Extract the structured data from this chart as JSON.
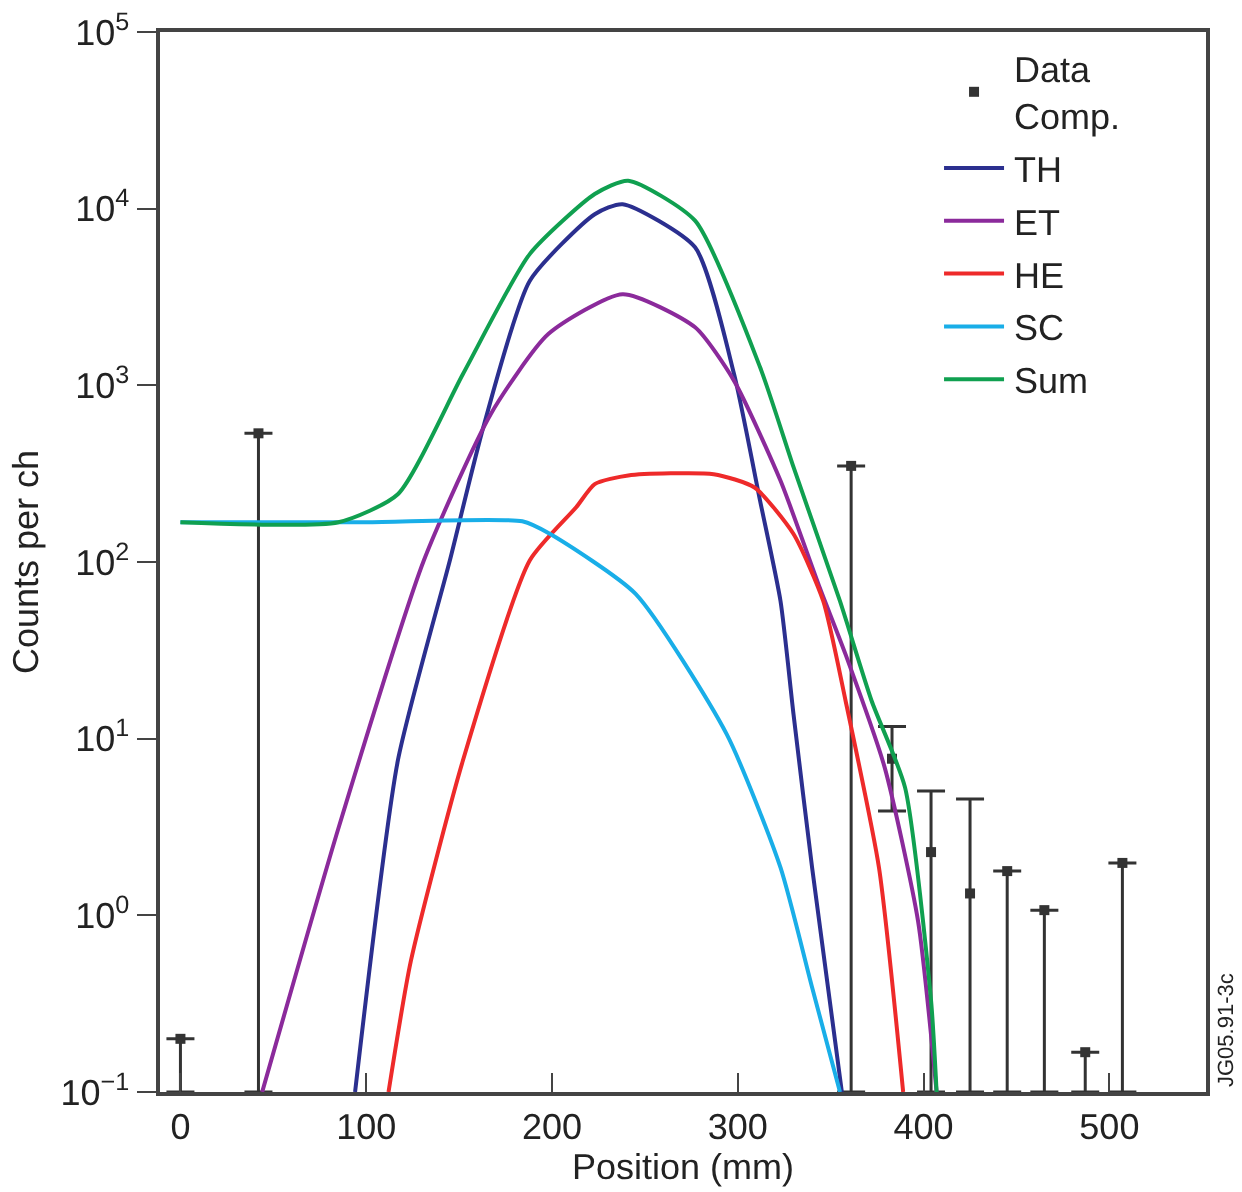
{
  "chart_data": {
    "type": "line",
    "xlabel": "Position (mm)",
    "ylabel": "Counts per ch",
    "log": "y",
    "grid": false,
    "legend": "top right",
    "xlim": [
      -11,
      552
    ],
    "xticks": [
      0,
      100,
      200,
      300,
      400,
      500
    ],
    "ylim": [
      0.1,
      100000
    ],
    "yticks": [
      {
        "value": 0.1,
        "label": "10$^{−1}$"
      },
      {
        "value": 1,
        "label": "10$^{0}$"
      },
      {
        "value": 10,
        "label": "10$^{1}$"
      },
      {
        "value": 100,
        "label": "10$^{2}$"
      },
      {
        "value": 1000,
        "label": "10$^{3}$"
      },
      {
        "value": 10000,
        "label": "10$^{4}$"
      },
      {
        "value": 100000,
        "label": "10$^{5}$"
      }
    ],
    "annotations": [
      "JG05.91-3c"
    ],
    "series": [
      {
        "name": "Data Comp.",
        "type": "scatter",
        "marker": "square",
        "color": "#333333",
        "x": [
          0,
          42,
          361,
          383,
          404,
          425,
          445,
          465,
          487,
          507
        ],
        "values": [
          0.2,
          535,
          350,
          7.7,
          2.28,
          1.33,
          1.78,
          1.07,
          0.168,
          1.98
        ],
        "errors": [
          [
            0.1,
            0.2
          ],
          [
            0.1,
            535
          ],
          [
            0.1,
            350
          ],
          [
            3.9,
            11.7
          ],
          [
            0.1,
            5.06
          ],
          [
            0.1,
            4.56
          ],
          [
            0.1,
            1.78
          ],
          [
            0.1,
            1.07
          ],
          [
            0.1,
            0.168
          ],
          [
            0.1,
            1.98
          ]
        ]
      },
      {
        "name": "TH",
        "color": "#2b2f8f",
        "x": [
          94,
          117,
          145,
          163,
          188,
          223,
          238,
          277,
          298,
          312,
          323,
          330,
          340,
          356
        ],
        "values": [
          0.1,
          7.5,
          102,
          578,
          3900,
          9300,
          10600,
          6040,
          1155,
          222,
          60,
          13.7,
          1.86,
          0.1
        ]
      },
      {
        "name": "ET",
        "color": "#8b2a9b",
        "x": [
          44,
          85,
          131,
          167,
          198,
          238,
          277,
          298,
          323,
          344,
          358,
          379,
          397,
          407
        ],
        "values": [
          0.1,
          3.1,
          102,
          687,
          1950,
          3280,
          2130,
          1060,
          288,
          72,
          30,
          6.9,
          0.93,
          0.1
        ]
      },
      {
        "name": "HE",
        "color": "#ee2a2a",
        "x": [
          112,
          124,
          152,
          188,
          213,
          223,
          241,
          287,
          309,
          330,
          346,
          358,
          376,
          389
        ],
        "values": [
          0.1,
          0.55,
          7.5,
          102,
          204,
          276,
          309,
          314,
          264,
          144,
          60,
          16.4,
          1.86,
          0.1
        ]
      },
      {
        "name": "SC",
        "color": "#19aee8",
        "x": [
          0,
          100,
          184,
          199,
          245,
          294,
          323,
          340,
          355
        ],
        "values": [
          168,
          168,
          170,
          144,
          66,
          10.6,
          1.86,
          0.39,
          0.1
        ]
      },
      {
        "name": "Sum",
        "color": "#10a050",
        "x": [
          0,
          85,
          117,
          152,
          188,
          223,
          241,
          277,
          312,
          330,
          355,
          372,
          390,
          404,
          407
        ],
        "values": [
          168,
          168,
          242,
          1156,
          5530,
          12100,
          14400,
          8550,
          1265,
          344,
          60,
          16.4,
          5.3,
          0.33,
          0.1
        ]
      }
    ]
  }
}
